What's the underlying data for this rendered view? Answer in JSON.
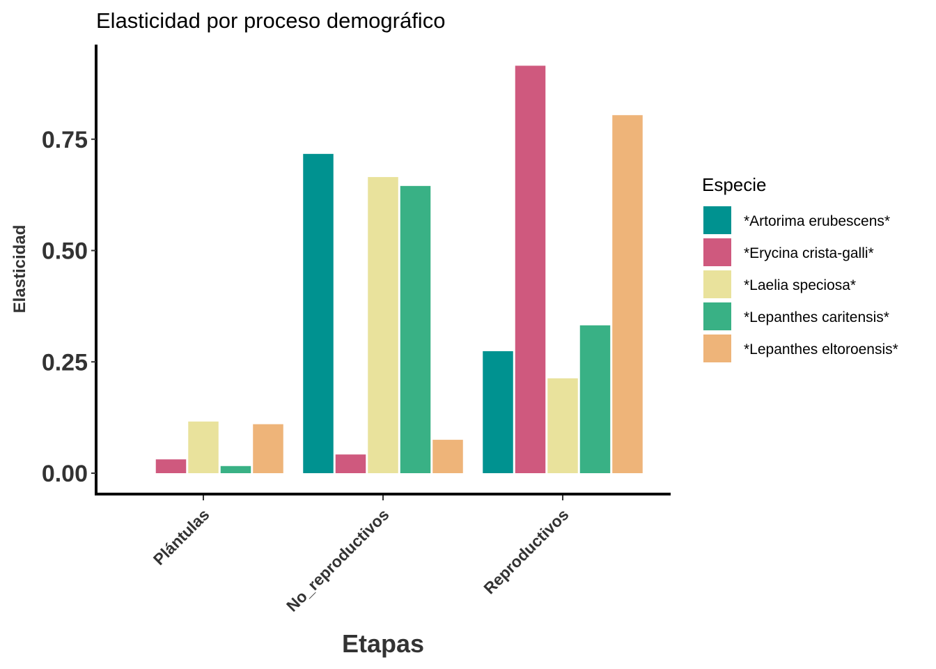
{
  "chart_data": {
    "type": "bar",
    "title": "Elasticidad por proceso demográfico",
    "xlabel": "Etapas",
    "ylabel": "Elasticidad",
    "categories": [
      "Plántulas",
      "No_reproductivos",
      "Reproductivos"
    ],
    "ylim": [
      -0.04,
      0.96
    ],
    "yticks": [
      0.0,
      0.25,
      0.5,
      0.75
    ],
    "ytick_labels": [
      "0.00",
      "0.25",
      "0.50",
      "0.75"
    ],
    "grid": false,
    "legend": {
      "title": "Especie",
      "position": "right"
    },
    "series": [
      {
        "name": "*Artorima erubescens*",
        "color": "#009290",
        "values": [
          null,
          0.717,
          0.274
        ]
      },
      {
        "name": "*Erycina crista-galli*",
        "color": "#CF597E",
        "values": [
          0.031,
          0.042,
          0.915
        ]
      },
      {
        "name": "*Laelia speciosa*",
        "color": "#E9E29C",
        "values": [
          0.116,
          0.665,
          0.213
        ]
      },
      {
        "name": "*Lepanthes caritensis*",
        "color": "#39B185",
        "values": [
          0.016,
          0.645,
          0.332
        ]
      },
      {
        "name": "*Lepanthes eltoroensis*",
        "color": "#EEB479",
        "values": [
          0.11,
          0.075,
          0.804
        ]
      }
    ]
  }
}
